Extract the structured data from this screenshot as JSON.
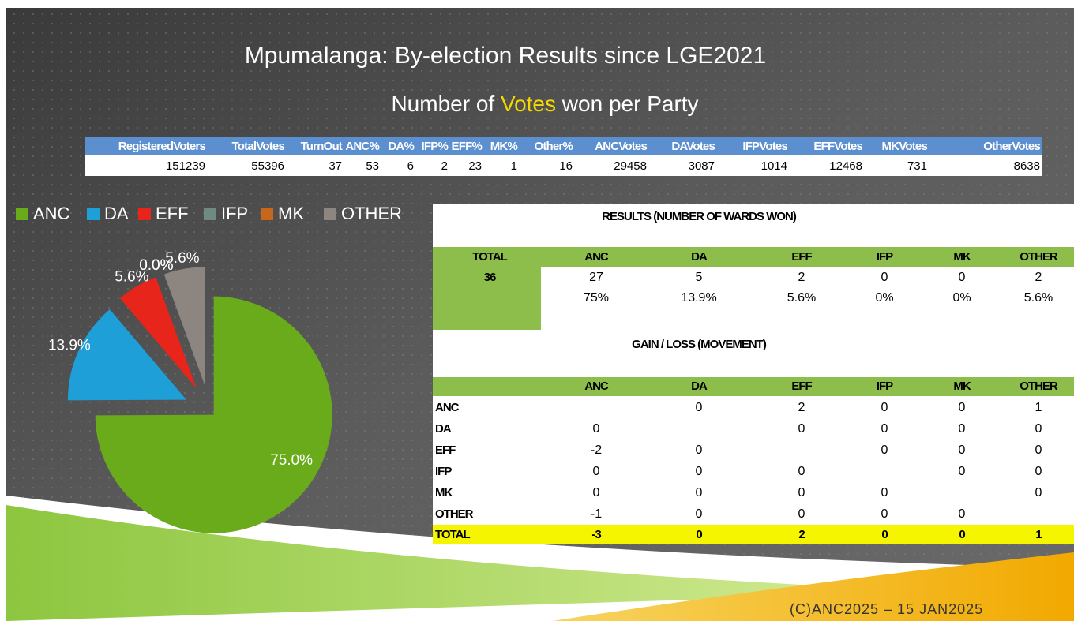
{
  "title": "Mpumalanga: By-election Results since LGE2021",
  "subtitle_parts": [
    "Number of",
    "Votes",
    "won per Party"
  ],
  "votes_table": {
    "headers": [
      "RegisteredVoters",
      "TotalVotes",
      "TurnOut",
      "ANC%",
      "DA%",
      "IFP%",
      "EFF%",
      "MK%",
      "Other%",
      "ANCVotes",
      "DAVotes",
      "IFPVotes",
      "EFFVotes",
      "MKVotes",
      "OtherVotes"
    ],
    "row": [
      151239,
      55396,
      37,
      53,
      6,
      2,
      23,
      1,
      16,
      29458,
      3087,
      1014,
      12468,
      731,
      8638
    ]
  },
  "chart_data": {
    "type": "pie",
    "categories": [
      "ANC",
      "DA",
      "EFF",
      "IFP",
      "MK",
      "OTHER"
    ],
    "values": [
      75.0,
      13.9,
      5.6,
      0.0,
      0.0,
      5.6
    ],
    "value_labels": [
      "75.0%",
      "13.9%",
      "5.6%",
      "0.0%",
      "0.0%",
      "5.6%"
    ],
    "colors": [
      "#6aab1c",
      "#1e9fd8",
      "#e8251a",
      "#6f8a80",
      "#c8671a",
      "#8c8580"
    ],
    "legend": "top"
  },
  "results_table": {
    "title": "RESULTS (NUMBER OF WARDS WON)",
    "headers": [
      "TOTAL",
      "ANC",
      "DA",
      "EFF",
      "IFP",
      "MK",
      "OTHER"
    ],
    "total": 36,
    "counts": [
      27,
      5,
      2,
      0,
      0,
      2
    ],
    "percentages": [
      "75%",
      "13.9%",
      "5.6%",
      "0%",
      "0%",
      "5.6%"
    ]
  },
  "movement_table": {
    "title": "GAIN / LOSS (MOVEMENT)",
    "headers": [
      "ANC",
      "DA",
      "EFF",
      "IFP",
      "MK",
      "OTHER"
    ],
    "rows": [
      {
        "label": "ANC",
        "cells": [
          null,
          0,
          2,
          0,
          0,
          1
        ]
      },
      {
        "label": "DA",
        "cells": [
          0,
          null,
          0,
          0,
          0,
          0
        ]
      },
      {
        "label": "EFF",
        "cells": [
          -2,
          0,
          null,
          0,
          0,
          0
        ]
      },
      {
        "label": "IFP",
        "cells": [
          0,
          0,
          0,
          null,
          0,
          0
        ]
      },
      {
        "label": "MK",
        "cells": [
          0,
          0,
          0,
          0,
          null,
          0
        ]
      },
      {
        "label": "OTHER",
        "cells": [
          -1,
          0,
          0,
          0,
          0,
          null
        ]
      }
    ],
    "total_label": "TOTAL",
    "totals": [
      -3,
      0,
      2,
      0,
      0,
      1
    ]
  },
  "footer": "(C)ANC2025 – 15 JAN2025"
}
